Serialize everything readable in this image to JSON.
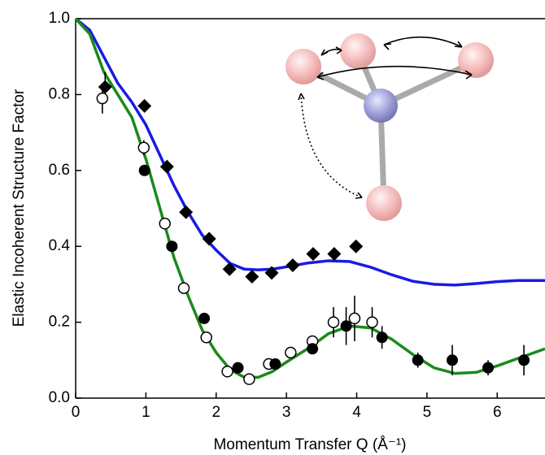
{
  "chart_data": {
    "type": "line",
    "x_label": "Momentum Transfer Q (Å⁻¹)",
    "y_label": "Elastic Incoherent Structure Factor",
    "xlim": [
      0,
      6.68
    ],
    "ylim": [
      0,
      1
    ],
    "xticks": [
      0,
      1,
      2,
      3,
      4,
      5,
      6
    ],
    "yticks": [
      {
        "value": 0,
        "label": "0.0"
      },
      0.2,
      0.4,
      0.6,
      0.8,
      {
        "value": 1,
        "label": "1.0"
      }
    ],
    "series": [
      {
        "kind": "line",
        "color": "#1a1ae6",
        "x": [
          0,
          0.2,
          0.4,
          0.6,
          0.8,
          1.0,
          1.2,
          1.4,
          1.6,
          1.8,
          2.0,
          2.2,
          2.4,
          2.6,
          2.8,
          3.0,
          3.3,
          3.6,
          3.9,
          4.2,
          4.5,
          4.8,
          5.1,
          5.4,
          5.7,
          6.0,
          6.3,
          6.68
        ],
        "values": [
          1,
          0.97,
          0.9,
          0.83,
          0.78,
          0.72,
          0.64,
          0.56,
          0.49,
          0.43,
          0.39,
          0.355,
          0.34,
          0.338,
          0.34,
          0.346,
          0.356,
          0.362,
          0.36,
          0.345,
          0.325,
          0.308,
          0.3,
          0.298,
          0.302,
          0.307,
          0.31,
          0.31
        ]
      },
      {
        "kind": "line",
        "color": "#1a8a1a",
        "x": [
          0,
          0.2,
          0.4,
          0.6,
          0.8,
          1.0,
          1.2,
          1.4,
          1.6,
          1.8,
          2.0,
          2.2,
          2.4,
          2.6,
          2.8,
          3.0,
          3.3,
          3.6,
          3.9,
          4.2,
          4.5,
          4.8,
          5.1,
          5.4,
          5.7,
          6.0,
          6.3,
          6.68
        ],
        "values": [
          1,
          0.96,
          0.86,
          0.8,
          0.74,
          0.63,
          0.5,
          0.37,
          0.27,
          0.18,
          0.12,
          0.075,
          0.055,
          0.055,
          0.07,
          0.095,
          0.13,
          0.17,
          0.19,
          0.185,
          0.155,
          0.115,
          0.08,
          0.065,
          0.068,
          0.085,
          0.105,
          0.13
        ]
      },
      {
        "kind": "scatter",
        "marker": "diamond",
        "color": "#000000",
        "x": [
          0.42,
          0.98,
          1.3,
          1.57,
          1.9,
          2.19,
          2.51,
          2.79,
          3.09,
          3.38,
          3.68,
          3.99
        ],
        "values": [
          0.82,
          0.77,
          0.61,
          0.49,
          0.42,
          0.34,
          0.32,
          0.33,
          0.35,
          0.38,
          0.38,
          0.4
        ],
        "errors": [
          0.04,
          null,
          null,
          null,
          null,
          null,
          null,
          null,
          null,
          null,
          null,
          null
        ]
      },
      {
        "kind": "scatter",
        "marker": "open-circle",
        "color": "#000000",
        "x": [
          0.38,
          0.97,
          1.27,
          1.54,
          1.86,
          2.16,
          2.47,
          2.75,
          3.06,
          3.37,
          3.67,
          3.97,
          4.22
        ],
        "values": [
          0.79,
          0.66,
          0.46,
          0.29,
          0.16,
          0.07,
          0.05,
          0.09,
          0.12,
          0.15,
          0.2,
          0.21,
          0.2
        ],
        "errors": [
          0.04,
          0.02,
          null,
          null,
          null,
          null,
          null,
          null,
          null,
          null,
          0.04,
          0.06,
          0.04
        ]
      },
      {
        "kind": "scatter",
        "marker": "circle",
        "color": "#000000",
        "x": [
          0.98,
          1.37,
          1.83,
          2.31,
          2.84,
          3.37,
          3.85,
          4.36,
          4.87,
          5.36,
          5.87,
          6.38
        ],
        "values": [
          0.6,
          0.4,
          0.21,
          0.08,
          0.09,
          0.13,
          0.19,
          0.16,
          0.1,
          0.1,
          0.08,
          0.1
        ],
        "errors": [
          null,
          null,
          null,
          null,
          null,
          null,
          0.05,
          0.03,
          0.02,
          0.04,
          0.02,
          0.04
        ]
      }
    ]
  }
}
